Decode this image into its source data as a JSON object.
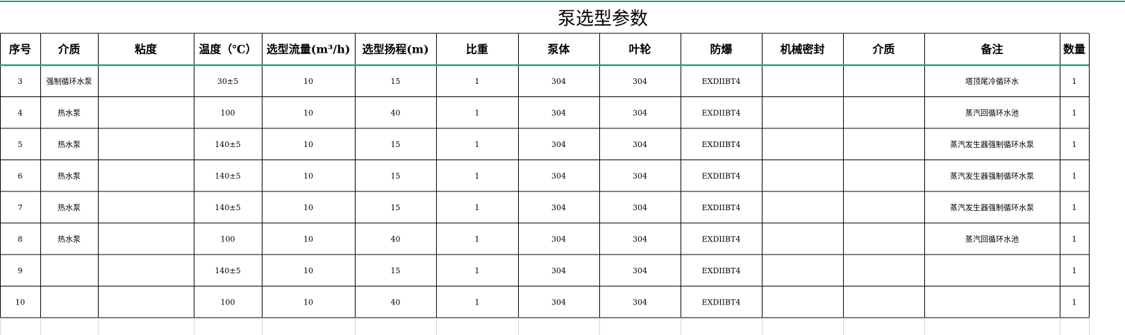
{
  "title": "泵选型参数",
  "table": {
    "header": [
      "序号",
      "介质",
      "粘度",
      "温度（℃）",
      "选型流量(m³/h)",
      "选型扬程(m)",
      "比重",
      "泵体",
      "叶轮",
      "防爆",
      "机械密封",
      "介质",
      "备注",
      "数量"
    ],
    "rows": [
      [
        3,
        "强制循环水泵",
        null,
        "30±5",
        10,
        15,
        1,
        304,
        304,
        "EXDIIBT4",
        null,
        null,
        "塔顶尾冷循环水",
        1
      ],
      [
        4,
        "热水泵",
        null,
        100,
        10,
        40,
        1,
        304,
        304,
        "EXDIIBT4",
        null,
        null,
        "蒸汽回循环水池",
        1
      ],
      [
        5,
        "热水泵",
        null,
        "140±5",
        10,
        15,
        1,
        304,
        304,
        "EXDIIBT4",
        null,
        null,
        "蒸汽发生器强制循环水泵",
        1
      ],
      [
        6,
        "热水泵",
        null,
        "140±5",
        10,
        15,
        1,
        304,
        304,
        "EXDIIBT4",
        null,
        null,
        "蒸汽发生器强制循环水泵",
        1
      ],
      [
        7,
        "热水泵",
        null,
        "140±5",
        10,
        15,
        1,
        304,
        304,
        "EXDIIBT4",
        null,
        null,
        "蒸汽发生器强制循环水泵",
        1
      ],
      [
        8,
        "热水泵",
        null,
        100,
        10,
        40,
        1,
        304,
        304,
        "EXDIIBT4",
        null,
        null,
        "蒸汽回循环水池",
        1
      ],
      [
        9,
        null,
        null,
        "140±5",
        10,
        15,
        1,
        304,
        304,
        "EXDIIBT4",
        null,
        null,
        null,
        1
      ],
      [
        10,
        null,
        null,
        100,
        10,
        40,
        1,
        304,
        304,
        "EXDIIBT4",
        null,
        null,
        null,
        1
      ]
    ]
  }
}
